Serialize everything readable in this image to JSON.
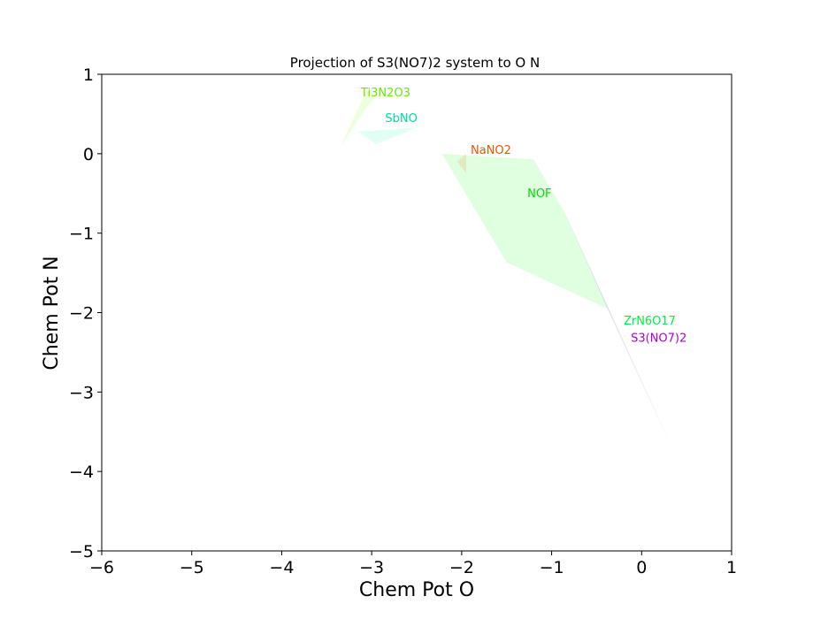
{
  "chart_data": {
    "type": "area",
    "title": "Projection of S3(NO7)2 system to O N",
    "xlabel": "Chem Pot O",
    "ylabel": "Chem Pot N",
    "xlim": [
      -6,
      1
    ],
    "ylim": [
      -5,
      1
    ],
    "xticks": [
      -6,
      -5,
      -4,
      -3,
      -2,
      -1,
      0,
      1
    ],
    "yticks": [
      -5,
      -4,
      -3,
      -2,
      -1,
      0,
      1
    ],
    "xtick_labels": [
      "−6",
      "−5",
      "−4",
      "−3",
      "−2",
      "−1",
      "0",
      "1"
    ],
    "ytick_labels": [
      "−5",
      "−4",
      "−3",
      "−2",
      "−1",
      "0",
      "1"
    ],
    "grid": false,
    "regions": [
      {
        "name": "NOF",
        "color": "#00ff00",
        "opacity": 0.12,
        "label_color": "#00dd00",
        "label_at": [
          -1.27,
          -0.55
        ],
        "polygon": [
          [
            -2.22,
            0.0
          ],
          [
            -1.2,
            -0.07
          ],
          [
            -0.85,
            -0.75
          ],
          [
            -0.38,
            -1.95
          ],
          [
            -1.5,
            -1.37
          ]
        ]
      },
      {
        "name": "ZrN6O17",
        "color": "#00ff66",
        "opacity": 0.12,
        "label_color": "#00ee44",
        "label_at": [
          -0.2,
          -2.15
        ],
        "polygon": [
          [
            -0.85,
            -0.75
          ],
          [
            0.45,
            -4.0
          ],
          [
            -0.38,
            -1.95
          ]
        ]
      },
      {
        "name": "S3(NO7)2",
        "color": "#7a1fa0",
        "opacity": 0.14,
        "label_color": "#b000e0",
        "label_at": [
          -0.12,
          -2.37
        ],
        "polygon": [
          [
            -0.85,
            -0.75
          ],
          [
            0.3,
            -3.6
          ],
          [
            -0.42,
            -1.85
          ]
        ]
      },
      {
        "name": "Ti3N2O3",
        "color": "#88ff22",
        "opacity": 0.14,
        "label_color": "#66ee00",
        "label_at": [
          -3.12,
          0.72
        ],
        "polygon": [
          [
            -3.35,
            0.08
          ],
          [
            -3.05,
            0.82
          ],
          [
            -2.95,
            0.72
          ],
          [
            -3.08,
            0.55
          ]
        ]
      },
      {
        "name": "SbNO",
        "color": "#00ffaa",
        "opacity": 0.12,
        "label_color": "#00dd99",
        "label_at": [
          -2.85,
          0.4
        ],
        "polygon": [
          [
            -3.15,
            0.28
          ],
          [
            -2.5,
            0.33
          ],
          [
            -2.95,
            0.12
          ]
        ]
      },
      {
        "name": "NaNO2",
        "color": "#ff6600",
        "opacity": 0.14,
        "label_color": "#ee5500",
        "label_at": [
          -1.9,
          0.0
        ],
        "polygon": [
          [
            -2.05,
            -0.1
          ],
          [
            -1.95,
            0.0
          ],
          [
            -1.95,
            -0.25
          ]
        ]
      }
    ]
  }
}
